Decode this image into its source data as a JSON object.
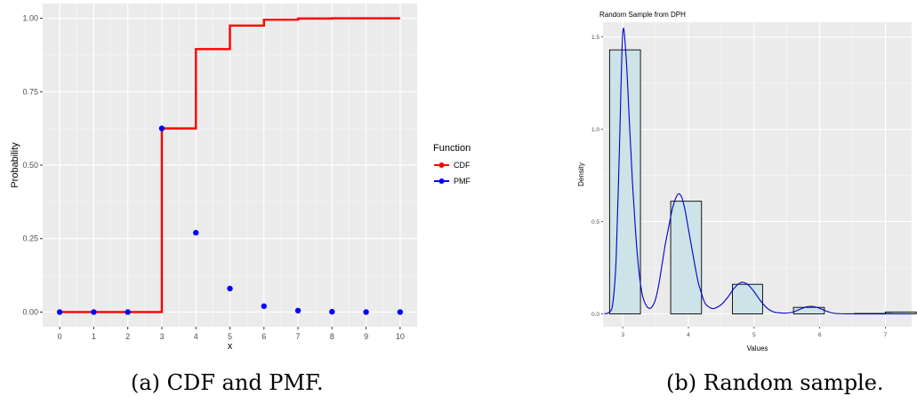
{
  "chart_data": [
    {
      "type": "line",
      "xlabel": "x",
      "ylabel": "Probability",
      "xlim": [
        -0.5,
        10.5
      ],
      "ylim": [
        -0.05,
        1.05
      ],
      "x_ticks": [
        "0",
        "1",
        "2",
        "3",
        "4",
        "5",
        "6",
        "7",
        "8",
        "9",
        "10"
      ],
      "y_ticks": [
        "0.00",
        "0.25",
        "0.50",
        "0.75",
        "1.00"
      ],
      "grid": true,
      "legend_title": "Function",
      "legend_position": "right",
      "series": [
        {
          "name": "CDF",
          "color": "#ff0000",
          "style": "step",
          "x": [
            0,
            1,
            2,
            3,
            4,
            5,
            6,
            7,
            8,
            9,
            10
          ],
          "y": [
            0,
            0,
            0,
            0.625,
            0.895,
            0.975,
            0.995,
            0.999,
            1.0,
            1.0,
            1.0
          ]
        },
        {
          "name": "PMF",
          "color": "#0000ff",
          "style": "points",
          "x": [
            0,
            1,
            2,
            3,
            4,
            5,
            6,
            7,
            8,
            9,
            10
          ],
          "y": [
            0,
            0,
            0,
            0.625,
            0.27,
            0.08,
            0.02,
            0.005,
            0.001,
            0,
            0
          ]
        }
      ]
    },
    {
      "type": "bar",
      "title": "Random Sample from DPH",
      "xlabel": "Values",
      "ylabel": "Density",
      "xlim": [
        2.7,
        7.4
      ],
      "ylim": [
        -0.07,
        1.58
      ],
      "x_ticks": [
        "3",
        "4",
        "5",
        "6",
        "7"
      ],
      "y_ticks": [
        "0.0",
        "0.5",
        "1.0",
        "1.5"
      ],
      "grid": true,
      "bar_color": "#cce3e7",
      "curve_color": "#0000cc",
      "bins": [
        {
          "start": 2.8,
          "end": 3.27,
          "value": 1.43
        },
        {
          "start": 3.73,
          "end": 4.2,
          "value": 0.61
        },
        {
          "start": 4.67,
          "end": 5.13,
          "value": 0.16
        },
        {
          "start": 5.6,
          "end": 6.07,
          "value": 0.035
        },
        {
          "start": 6.53,
          "end": 7.0,
          "value": 0.002
        },
        {
          "start": 7.0,
          "end": 7.47,
          "value": 0.01
        }
      ],
      "density_curve": {
        "x": [
          2.72,
          2.8,
          2.85,
          2.9,
          2.95,
          3.0,
          3.05,
          3.1,
          3.15,
          3.2,
          3.25,
          3.3,
          3.35,
          3.4,
          3.45,
          3.5,
          3.55,
          3.6,
          3.65,
          3.7,
          3.75,
          3.8,
          3.85,
          3.9,
          3.95,
          4.0,
          4.05,
          4.1,
          4.15,
          4.2,
          4.25,
          4.3,
          4.35,
          4.4,
          4.5,
          4.6,
          4.7,
          4.8,
          4.9,
          5.0,
          5.1,
          5.2,
          5.3,
          5.4,
          5.5,
          5.6,
          5.7,
          5.8,
          5.9,
          6.0,
          6.1,
          6.2,
          6.3,
          6.4,
          6.6,
          6.8,
          7.0,
          7.2,
          7.38
        ],
        "y": [
          0.0,
          0.01,
          0.06,
          0.3,
          0.9,
          1.52,
          1.4,
          1.05,
          0.7,
          0.42,
          0.22,
          0.1,
          0.05,
          0.03,
          0.04,
          0.08,
          0.16,
          0.27,
          0.38,
          0.47,
          0.56,
          0.62,
          0.65,
          0.63,
          0.56,
          0.46,
          0.36,
          0.26,
          0.17,
          0.11,
          0.06,
          0.04,
          0.03,
          0.03,
          0.05,
          0.09,
          0.14,
          0.17,
          0.16,
          0.12,
          0.07,
          0.03,
          0.01,
          0.005,
          0.004,
          0.01,
          0.025,
          0.038,
          0.04,
          0.03,
          0.015,
          0.004,
          0.001,
          0.0,
          0.0,
          0.0,
          0.002,
          0.0,
          0.0
        ]
      }
    }
  ],
  "captions": [
    "(a) CDF and PMF.",
    "(b) Random sample."
  ]
}
